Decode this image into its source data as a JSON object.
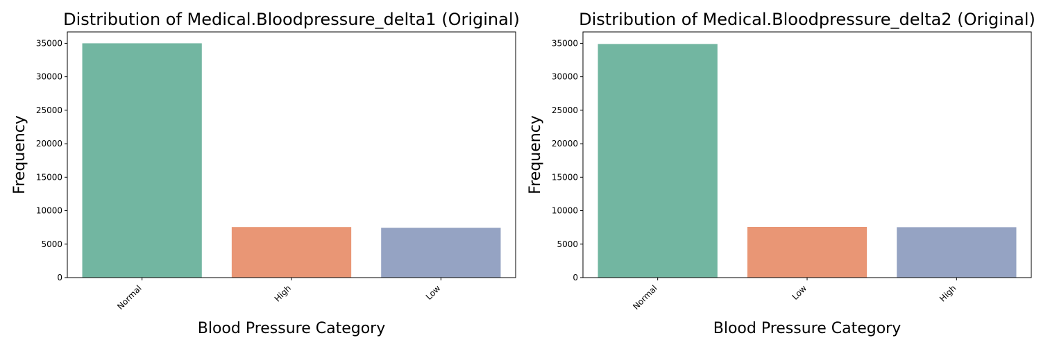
{
  "chart_data": [
    {
      "type": "bar",
      "title": "Distribution of Medical.Bloodpressure_delta1 (Original)",
      "xlabel": "Blood Pressure Category",
      "ylabel": "Frequency",
      "categories": [
        "Normal",
        "High",
        "Low"
      ],
      "values": [
        35000,
        7550,
        7450
      ],
      "colors": [
        "#72b6a1",
        "#e99675",
        "#95a3c3"
      ],
      "ylim": [
        0,
        36700
      ],
      "yticks": [
        0,
        5000,
        10000,
        15000,
        20000,
        25000,
        30000,
        35000
      ],
      "grid": false,
      "legend": "none"
    },
    {
      "type": "bar",
      "title": "Distribution of Medical.Bloodpressure_delta2 (Original)",
      "xlabel": "Blood Pressure Category",
      "ylabel": "Frequency",
      "categories": [
        "Normal",
        "Low",
        "High"
      ],
      "values": [
        34900,
        7570,
        7530
      ],
      "colors": [
        "#72b6a1",
        "#e99675",
        "#95a3c3"
      ],
      "ylim": [
        0,
        36700
      ],
      "yticks": [
        0,
        5000,
        10000,
        15000,
        20000,
        25000,
        30000,
        35000
      ],
      "grid": false,
      "legend": "none"
    }
  ]
}
